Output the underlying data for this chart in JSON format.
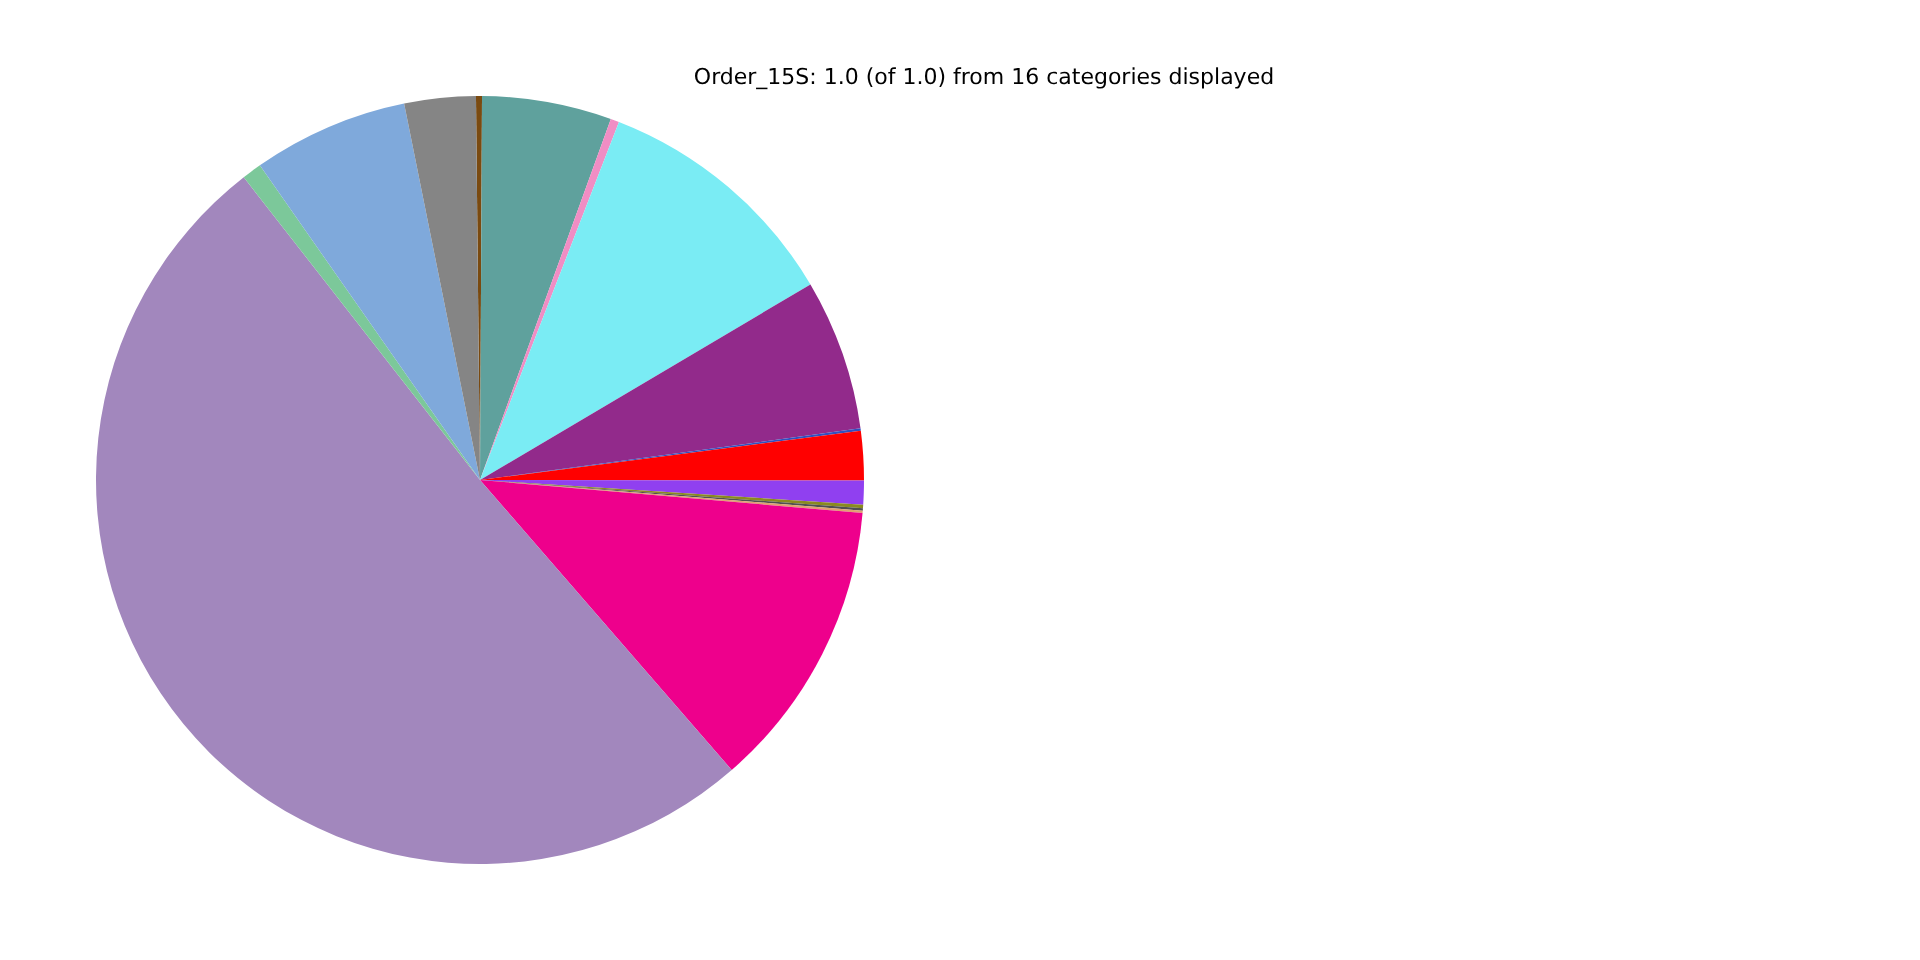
{
  "chart_data": {
    "type": "pie",
    "title": "Order_15S: 1.0 (of 1.0) from 16 categories displayed",
    "categories": [
      null,
      null,
      null,
      null,
      null,
      null,
      null,
      null,
      null,
      null,
      null,
      null,
      null,
      null,
      null,
      null
    ],
    "values": [
      0.25,
      5.45,
      0.36,
      10.6,
      6.36,
      0.1,
      2.07,
      1.0,
      0.15,
      0.1,
      0.1,
      12.25,
      50.83,
      0.83,
      6.55,
      3.0
    ],
    "colors": [
      "#7a4a10",
      "#5fa19d",
      "#f08dc4",
      "#7aecf4",
      "#922a8b",
      "#3050c0",
      "#ff0000",
      "#9040f0",
      "#8a8a20",
      "#505050",
      "#e0a070",
      "#ee008c",
      "#a287bd",
      "#7cc89a",
      "#7fa9db",
      "#858585"
    ],
    "legend": false
  }
}
